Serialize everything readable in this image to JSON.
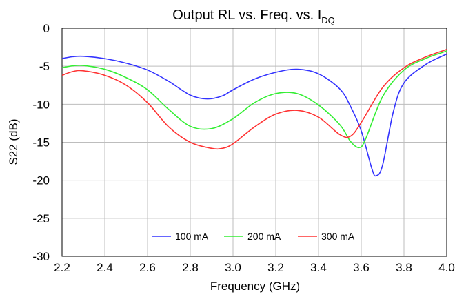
{
  "chart_data": {
    "type": "line",
    "title": "Output RL vs. Freq. vs. I",
    "title_subscript": "DQ",
    "xlabel": "Frequency (GHz)",
    "ylabel": "S22 (dB)",
    "xlim": [
      2.2,
      4.0
    ],
    "ylim": [
      -30,
      0
    ],
    "xticks": [
      "2.2",
      "2.4",
      "2.6",
      "2.8",
      "3.0",
      "3.2",
      "3.4",
      "3.6",
      "3.8",
      "4.0"
    ],
    "yticks": [
      "0",
      "-5",
      "-10",
      "-15",
      "-20",
      "-25",
      "-30"
    ],
    "grid": true,
    "legend_position": "bottom-center",
    "series": [
      {
        "name": "100 mA",
        "color": "#3333ff",
        "x": [
          2.2,
          2.25,
          2.3,
          2.4,
          2.5,
          2.6,
          2.7,
          2.8,
          2.88,
          2.95,
          3.0,
          3.1,
          3.2,
          3.3,
          3.4,
          3.5,
          3.55,
          3.6,
          3.65,
          3.67,
          3.7,
          3.75,
          3.8,
          3.9,
          4.0
        ],
        "y": [
          -4.0,
          -3.75,
          -3.7,
          -4.0,
          -4.6,
          -5.5,
          -7.0,
          -8.8,
          -9.3,
          -8.9,
          -8.1,
          -6.7,
          -5.8,
          -5.4,
          -6.0,
          -8.0,
          -10.3,
          -13.5,
          -18.5,
          -19.4,
          -18.0,
          -11.0,
          -7.2,
          -4.8,
          -3.4
        ]
      },
      {
        "name": "200 mA",
        "color": "#33ee33",
        "x": [
          2.2,
          2.25,
          2.3,
          2.4,
          2.5,
          2.6,
          2.7,
          2.8,
          2.9,
          3.0,
          3.1,
          3.2,
          3.3,
          3.4,
          3.5,
          3.55,
          3.59,
          3.62,
          3.7,
          3.8,
          3.9,
          4.0
        ],
        "y": [
          -5.2,
          -4.95,
          -4.9,
          -5.4,
          -6.5,
          -8.1,
          -10.7,
          -12.9,
          -13.2,
          -11.9,
          -9.8,
          -8.6,
          -8.6,
          -10.1,
          -12.7,
          -14.9,
          -15.7,
          -14.6,
          -9.0,
          -5.5,
          -4.0,
          -3.0
        ]
      },
      {
        "name": "300 mA",
        "color": "#ff3333",
        "x": [
          2.2,
          2.25,
          2.3,
          2.4,
          2.5,
          2.6,
          2.7,
          2.8,
          2.9,
          2.95,
          3.0,
          3.1,
          3.2,
          3.3,
          3.4,
          3.5,
          3.55,
          3.6,
          3.7,
          3.8,
          3.9,
          4.0
        ],
        "y": [
          -6.2,
          -5.7,
          -5.6,
          -6.2,
          -7.5,
          -9.8,
          -13.0,
          -15.0,
          -15.8,
          -15.8,
          -15.2,
          -13.0,
          -11.3,
          -10.8,
          -11.7,
          -14.0,
          -14.2,
          -12.4,
          -7.8,
          -5.2,
          -3.8,
          -2.8
        ]
      }
    ]
  }
}
